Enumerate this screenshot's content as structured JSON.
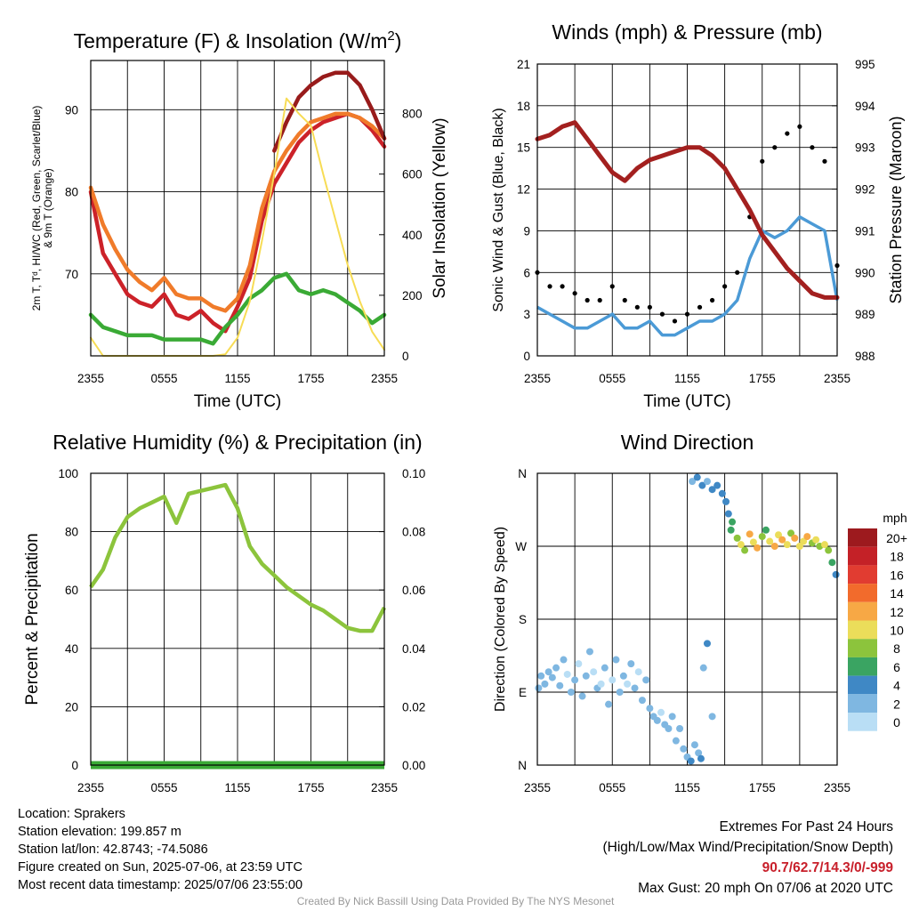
{
  "colors": {
    "red": "#cc2229",
    "orange": "#f07b2a",
    "green": "#3aaa35",
    "darkred": "#981b1b",
    "yellow": "#f7dc55",
    "blue": "#4b9ad6",
    "black": "#000000",
    "maroon": "#a3201f",
    "rh": "#8cc43c",
    "precip": "#3aaa35"
  },
  "chart_data": [
    {
      "type": "line",
      "title": "Temperature (F) & Insolation (W/m²)",
      "xlabel": "Time (UTC)",
      "ylabel": "2m T, Td, HI/WC (Red, Green, Scarlet/Blue) & 9m T (Orange)",
      "y2label": "Solar Insolation (Yellow)",
      "x_ticks": [
        "2355",
        "0555",
        "1155",
        "1755",
        "2355"
      ],
      "ylim": [
        60,
        96
      ],
      "y_ticks": [
        70,
        80,
        90
      ],
      "y2lim": [
        0,
        975
      ],
      "y2_ticks": [
        0,
        200,
        400,
        600,
        800
      ],
      "grid": true,
      "x_hours": [
        0,
        1,
        2,
        3,
        4,
        5,
        6,
        7,
        8,
        9,
        10,
        11,
        12,
        13,
        14,
        15,
        16,
        17,
        18,
        19,
        20,
        21,
        22,
        23,
        24
      ],
      "series": [
        {
          "name": "2m T",
          "color": "red",
          "axis": "left",
          "values": [
            80,
            72.5,
            70,
            67.5,
            66.5,
            66,
            67.5,
            65,
            64.5,
            65.5,
            64,
            63,
            66,
            69.5,
            76.5,
            81,
            83.5,
            86,
            87.5,
            88.5,
            89,
            89.5,
            89,
            87.5,
            85.5
          ]
        },
        {
          "name": "9m T",
          "color": "orange",
          "axis": "left",
          "values": [
            80.5,
            76,
            73,
            70.5,
            69,
            68,
            69.5,
            67.5,
            67,
            67,
            66,
            65.5,
            67,
            71,
            78,
            82.5,
            85,
            87,
            88.5,
            89,
            89.5,
            89.5,
            89,
            88,
            86.5
          ]
        },
        {
          "name": "HI/WC",
          "color": "darkred",
          "axis": "left",
          "values": [
            null,
            null,
            null,
            null,
            null,
            null,
            null,
            null,
            null,
            null,
            null,
            null,
            null,
            null,
            null,
            85,
            88.5,
            91.5,
            93,
            94,
            94.5,
            94.5,
            93,
            90,
            86.5
          ]
        },
        {
          "name": "Td",
          "color": "green",
          "axis": "left",
          "values": [
            65,
            63.5,
            63,
            62.5,
            62.5,
            62.5,
            62,
            62,
            62,
            62,
            61.5,
            63.5,
            65,
            67,
            68,
            69.5,
            70,
            68,
            67.5,
            68,
            67.5,
            66.5,
            65.5,
            64,
            65
          ]
        },
        {
          "name": "Solar Insolation",
          "color": "yellow",
          "axis": "right",
          "values": [
            60,
            0,
            0,
            0,
            0,
            0,
            0,
            0,
            0,
            0,
            0,
            5,
            60,
            180,
            380,
            600,
            850,
            800,
            760,
            600,
            450,
            300,
            180,
            80,
            20
          ]
        }
      ]
    },
    {
      "type": "line",
      "title": "Winds (mph) & Pressure (mb)",
      "xlabel": "Time (UTC)",
      "ylabel": "Sonic Wind & Gust (Blue, Black)",
      "y2label": "Station Pressure (Maroon)",
      "x_ticks": [
        "2355",
        "0555",
        "1155",
        "1755",
        "2355"
      ],
      "ylim": [
        0,
        21
      ],
      "y_ticks": [
        0,
        3,
        6,
        9,
        12,
        15,
        18,
        21
      ],
      "y2lim": [
        988,
        995
      ],
      "y2_ticks": [
        988,
        989,
        990,
        991,
        992,
        993,
        994,
        995
      ],
      "grid": true,
      "x_hours": [
        0,
        1,
        2,
        3,
        4,
        5,
        6,
        7,
        8,
        9,
        10,
        11,
        12,
        13,
        14,
        15,
        16,
        17,
        18,
        19,
        20,
        21,
        22,
        23,
        24
      ],
      "series": [
        {
          "name": "Sonic Wind",
          "color": "blue",
          "axis": "left",
          "values": [
            3.5,
            3,
            2.5,
            2,
            2,
            2.5,
            3,
            2,
            2,
            2.5,
            1.5,
            1.5,
            2,
            2.5,
            2.5,
            3,
            4,
            7,
            9,
            8.5,
            9,
            10,
            9.5,
            9,
            4
          ]
        },
        {
          "name": "Gust",
          "color": "black",
          "axis": "left",
          "values": [
            6,
            5,
            5,
            4.5,
            4,
            4,
            5,
            4,
            3.5,
            3.5,
            3,
            2.5,
            3,
            3.5,
            4,
            5,
            6,
            10,
            14,
            15,
            16,
            16.5,
            15,
            14,
            6.5
          ]
        },
        {
          "name": "Station Pressure",
          "color": "maroon",
          "axis": "right",
          "values": [
            993.2,
            993.3,
            993.5,
            993.6,
            993.2,
            992.8,
            992.4,
            992.2,
            992.5,
            992.7,
            992.8,
            992.9,
            993.0,
            993.0,
            992.8,
            992.5,
            992.0,
            991.5,
            990.9,
            990.5,
            990.1,
            989.8,
            989.5,
            989.4,
            989.4
          ]
        }
      ]
    },
    {
      "type": "line",
      "title": "Relative Humidity (%) & Precipitation (in)",
      "xlabel": "",
      "ylabel": "Percent & Precipitation",
      "x_ticks": [
        "2355",
        "0555",
        "1155",
        "1755",
        "2355"
      ],
      "ylim": [
        0,
        100
      ],
      "y_ticks": [
        0,
        20,
        40,
        60,
        80,
        100
      ],
      "y2lim": [
        0,
        0.1
      ],
      "y2_ticks": [
        "0.00",
        "0.02",
        "0.04",
        "0.06",
        "0.08",
        "0.10"
      ],
      "grid": true,
      "x_hours": [
        0,
        1,
        2,
        3,
        4,
        5,
        6,
        7,
        8,
        9,
        10,
        11,
        12,
        13,
        14,
        15,
        16,
        17,
        18,
        19,
        20,
        21,
        22,
        23,
        24
      ],
      "series": [
        {
          "name": "Relative Humidity",
          "color": "rh",
          "axis": "left",
          "values": [
            61,
            67,
            78,
            85,
            88,
            90,
            92,
            83,
            93,
            94,
            95,
            96,
            88,
            75,
            69,
            65,
            61,
            58,
            55,
            53,
            50,
            47,
            46,
            46,
            54
          ]
        },
        {
          "name": "Precipitation",
          "color": "precip",
          "axis": "right",
          "values": [
            0,
            0,
            0,
            0,
            0,
            0,
            0,
            0,
            0,
            0,
            0,
            0,
            0,
            0,
            0,
            0,
            0,
            0,
            0,
            0,
            0,
            0,
            0,
            0,
            0
          ]
        }
      ]
    },
    {
      "type": "scatter",
      "title": "Wind Direction",
      "xlabel": "",
      "ylabel": "Direction (Colored By Speed)",
      "x_ticks": [
        "2355",
        "0555",
        "1155",
        "1755",
        "2355"
      ],
      "y_ticks": [
        "N",
        "E",
        "S",
        "W",
        "N"
      ],
      "ylim": [
        0,
        360
      ],
      "grid": true,
      "legend": {
        "unit": "mph",
        "labels": [
          "20+",
          "18",
          "16",
          "14",
          "12",
          "10",
          "8",
          "6",
          "4",
          "2",
          "0"
        ],
        "colors": [
          "#9d1a1e",
          "#c42127",
          "#e13c31",
          "#f26b2c",
          "#f7a845",
          "#ebdd5a",
          "#8cc43c",
          "#3aa462",
          "#3f88c5",
          "#7fb7e1",
          "#b9def5"
        ]
      },
      "points": [
        [
          0.1,
          95,
          3
        ],
        [
          0.3,
          110,
          3
        ],
        [
          0.6,
          100,
          2
        ],
        [
          0.9,
          115,
          2
        ],
        [
          1.2,
          108,
          3
        ],
        [
          1.5,
          120,
          3
        ],
        [
          1.8,
          98,
          2
        ],
        [
          2.1,
          130,
          2
        ],
        [
          2.4,
          112,
          1
        ],
        [
          2.7,
          90,
          2
        ],
        [
          3.0,
          105,
          3
        ],
        [
          3.3,
          125,
          1
        ],
        [
          3.6,
          85,
          2
        ],
        [
          3.9,
          110,
          3
        ],
        [
          4.2,
          140,
          2
        ],
        [
          4.5,
          115,
          1
        ],
        [
          4.8,
          95,
          2
        ],
        [
          5.1,
          100,
          1
        ],
        [
          5.4,
          120,
          3
        ],
        [
          5.7,
          75,
          2
        ],
        [
          6.0,
          105,
          1
        ],
        [
          6.3,
          130,
          2
        ],
        [
          6.6,
          90,
          3
        ],
        [
          6.9,
          110,
          2
        ],
        [
          7.2,
          100,
          1
        ],
        [
          7.5,
          125,
          2
        ],
        [
          7.8,
          95,
          3
        ],
        [
          8.1,
          115,
          1
        ],
        [
          8.4,
          80,
          2
        ],
        [
          8.7,
          105,
          3
        ],
        [
          9.0,
          70,
          2
        ],
        [
          9.3,
          60,
          3
        ],
        [
          9.6,
          55,
          2
        ],
        [
          9.9,
          65,
          1
        ],
        [
          10.2,
          50,
          3
        ],
        [
          10.5,
          45,
          2
        ],
        [
          10.8,
          60,
          2
        ],
        [
          11.1,
          30,
          3
        ],
        [
          11.4,
          45,
          2
        ],
        [
          11.7,
          20,
          3
        ],
        [
          12.0,
          10,
          3
        ],
        [
          12.3,
          5,
          4
        ],
        [
          12.6,
          25,
          3
        ],
        [
          12.9,
          15,
          2
        ],
        [
          13.1,
          8,
          4
        ],
        [
          13.3,
          120,
          3
        ],
        [
          13.6,
          150,
          4
        ],
        [
          14.0,
          60,
          2
        ],
        [
          12.4,
          350,
          3
        ],
        [
          12.8,
          355,
          4
        ],
        [
          13.2,
          345,
          4
        ],
        [
          13.6,
          350,
          3
        ],
        [
          14.0,
          340,
          4
        ],
        [
          14.4,
          345,
          4
        ],
        [
          14.8,
          335,
          4
        ],
        [
          15.1,
          325,
          4
        ],
        [
          15.3,
          310,
          5
        ],
        [
          15.5,
          290,
          6
        ],
        [
          15.6,
          300,
          7
        ],
        [
          16.0,
          280,
          9
        ],
        [
          16.3,
          272,
          10
        ],
        [
          16.6,
          265,
          9
        ],
        [
          17.0,
          285,
          12
        ],
        [
          17.3,
          275,
          11
        ],
        [
          17.6,
          268,
          13
        ],
        [
          18.0,
          282,
          8
        ],
        [
          18.3,
          290,
          7
        ],
        [
          18.6,
          276,
          10
        ],
        [
          19.0,
          270,
          12
        ],
        [
          19.3,
          284,
          11
        ],
        [
          19.6,
          278,
          13
        ],
        [
          20.0,
          272,
          10
        ],
        [
          20.3,
          286,
          9
        ],
        [
          20.6,
          280,
          12
        ],
        [
          21.0,
          270,
          11
        ],
        [
          21.3,
          276,
          10
        ],
        [
          21.6,
          282,
          12
        ],
        [
          22.0,
          274,
          9
        ],
        [
          22.3,
          278,
          10
        ],
        [
          22.6,
          270,
          8
        ],
        [
          23.0,
          272,
          10
        ],
        [
          23.3,
          265,
          9
        ],
        [
          23.6,
          250,
          6
        ],
        [
          23.9,
          235,
          4
        ]
      ]
    }
  ],
  "info": {
    "location": "Location: Sprakers",
    "elevation": "Station elevation: 199.857 m",
    "latlon": "Station lat/lon: 42.8743; -74.5086",
    "created": "Figure created on Sun, 2025-07-06, at 23:59 UTC",
    "recent": "Most recent data timestamp: 2025/07/06 23:55:00"
  },
  "extremes": {
    "title": "Extremes For Past 24 Hours",
    "subtitle": "(High/Low/Max Wind/Precipitation/Snow Depth)",
    "values": "90.7/62.7/14.3/0/-999",
    "gust": "Max Gust: 20 mph On 07/06 at 2020 UTC"
  },
  "credit": "Created By Nick Bassill Using Data Provided By The NYS Mesonet"
}
